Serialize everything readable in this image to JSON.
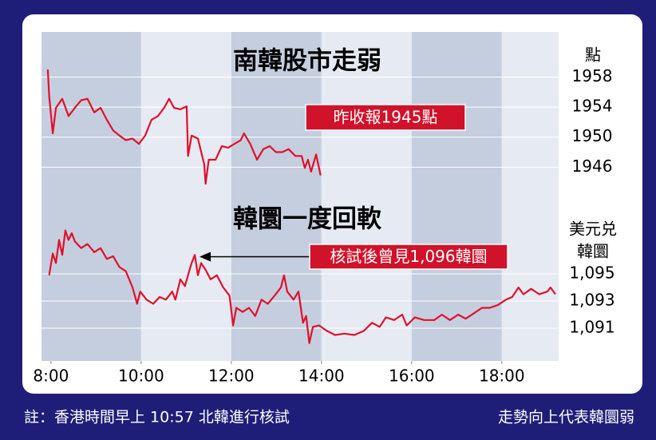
{
  "chart_data": [
    {
      "type": "line",
      "title": "南韓股市走弱",
      "y_label": [
        "點"
      ],
      "annotation": "昨收報1945點",
      "color": "#e0102a",
      "grid": true,
      "xlim": [
        7.79,
        19.26
      ],
      "ylim": [
        1942,
        1964
      ],
      "yticks": [
        1958,
        1954,
        1950,
        1946
      ],
      "x": [
        7.93,
        7.96,
        8.04,
        8.11,
        8.25,
        8.39,
        8.53,
        8.67,
        8.81,
        8.96,
        9.1,
        9.24,
        9.38,
        9.52,
        9.66,
        9.81,
        9.95,
        10.09,
        10.23,
        10.37,
        10.51,
        10.62,
        10.73,
        10.87,
        11.01,
        11.04,
        11.12,
        11.26,
        11.4,
        11.43,
        11.5,
        11.65,
        11.79,
        11.93,
        12.07,
        12.21,
        12.28,
        12.42,
        12.57,
        12.71,
        12.85,
        12.99,
        13.13,
        13.27,
        13.42,
        13.56,
        13.63,
        13.7,
        13.77,
        13.88,
        13.98
      ],
      "values": [
        1959.0,
        1955.5,
        1950.5,
        1953.9,
        1955.1,
        1952.8,
        1953.9,
        1954.9,
        1955.1,
        1953.3,
        1953.9,
        1952.3,
        1950.9,
        1950.2,
        1949.6,
        1949.8,
        1949.1,
        1950.2,
        1952.3,
        1952.8,
        1953.9,
        1955.1,
        1953.9,
        1953.7,
        1954.1,
        1947.5,
        1950.2,
        1949.8,
        1946.4,
        1943.8,
        1947.0,
        1947.0,
        1948.8,
        1948.6,
        1949.1,
        1949.6,
        1950.5,
        1949.1,
        1947.0,
        1948.4,
        1948.8,
        1948.0,
        1948.0,
        1948.4,
        1947.5,
        1947.5,
        1945.9,
        1947.0,
        1945.4,
        1947.7,
        1944.9
      ]
    },
    {
      "type": "line",
      "title": "韓圜一度回軟",
      "y_label": [
        "美元兑",
        "韓圜"
      ],
      "annotation": "核試後曾見1,096韓圜",
      "color": "#e0102a",
      "grid": true,
      "xlim": [
        7.79,
        19.26
      ],
      "ylim": [
        1089,
        1099
      ],
      "yticks": [
        {
          "value": 1095,
          "label": "1,095"
        },
        {
          "value": 1093,
          "label": "1,093"
        },
        {
          "value": 1091,
          "label": "1,091"
        }
      ],
      "xticks": [
        {
          "value": 8,
          "label": "8:00"
        },
        {
          "value": 10,
          "label": "10:00"
        },
        {
          "value": 12,
          "label": "12:00"
        },
        {
          "value": 14,
          "label": "14:00"
        },
        {
          "value": 16,
          "label": "16:00"
        },
        {
          "value": 18,
          "label": "18:00"
        }
      ],
      "x": [
        7.96,
        8.04,
        8.11,
        8.18,
        8.25,
        8.32,
        8.39,
        8.46,
        8.53,
        8.67,
        8.81,
        8.96,
        9.1,
        9.24,
        9.38,
        9.52,
        9.66,
        9.81,
        9.91,
        9.98,
        10.12,
        10.27,
        10.41,
        10.55,
        10.69,
        10.76,
        10.87,
        10.97,
        11.04,
        11.12,
        11.19,
        11.26,
        11.33,
        11.43,
        11.54,
        11.68,
        11.82,
        11.96,
        12.04,
        12.11,
        12.25,
        12.39,
        12.53,
        12.67,
        12.81,
        12.96,
        13.1,
        13.17,
        13.24,
        13.38,
        13.49,
        13.59,
        13.66,
        13.73,
        13.81,
        13.95,
        14.12,
        14.3,
        14.51,
        14.73,
        14.94,
        15.12,
        15.29,
        15.43,
        15.61,
        15.79,
        15.89,
        16.07,
        16.28,
        16.5,
        16.67,
        16.85,
        17.03,
        17.2,
        17.38,
        17.56,
        17.73,
        17.91,
        18.09,
        18.23,
        18.37,
        18.48,
        18.65,
        18.83,
        19.01,
        19.08,
        19.19
      ],
      "values": [
        1094.9,
        1096.5,
        1095.8,
        1097.5,
        1096.4,
        1098.2,
        1097.5,
        1098.0,
        1097.4,
        1096.9,
        1097.2,
        1096.6,
        1096.9,
        1096.1,
        1096.3,
        1095.5,
        1095.2,
        1094.0,
        1092.8,
        1093.7,
        1093.1,
        1092.8,
        1093.3,
        1093.1,
        1093.7,
        1093.1,
        1094.6,
        1094.1,
        1094.9,
        1095.8,
        1096.4,
        1094.9,
        1095.8,
        1095.3,
        1094.6,
        1094.9,
        1094.0,
        1093.4,
        1091.2,
        1092.5,
        1092.2,
        1092.5,
        1091.9,
        1093.1,
        1092.8,
        1093.4,
        1094.0,
        1094.9,
        1093.7,
        1093.1,
        1093.7,
        1091.4,
        1091.9,
        1089.9,
        1091.1,
        1091.2,
        1090.8,
        1090.5,
        1090.6,
        1090.5,
        1090.8,
        1091.4,
        1091.1,
        1091.8,
        1091.6,
        1092.0,
        1091.2,
        1091.8,
        1091.6,
        1091.6,
        1092.0,
        1091.6,
        1092.0,
        1091.7,
        1092.1,
        1092.5,
        1092.5,
        1092.7,
        1093.1,
        1093.3,
        1094.0,
        1093.5,
        1093.9,
        1093.5,
        1093.7,
        1094.0,
        1093.5
      ]
    }
  ],
  "footnote": "註：香港時間早上 10:57 北韓進行核試",
  "footnote_right": "走勢向上代表韓圜弱"
}
